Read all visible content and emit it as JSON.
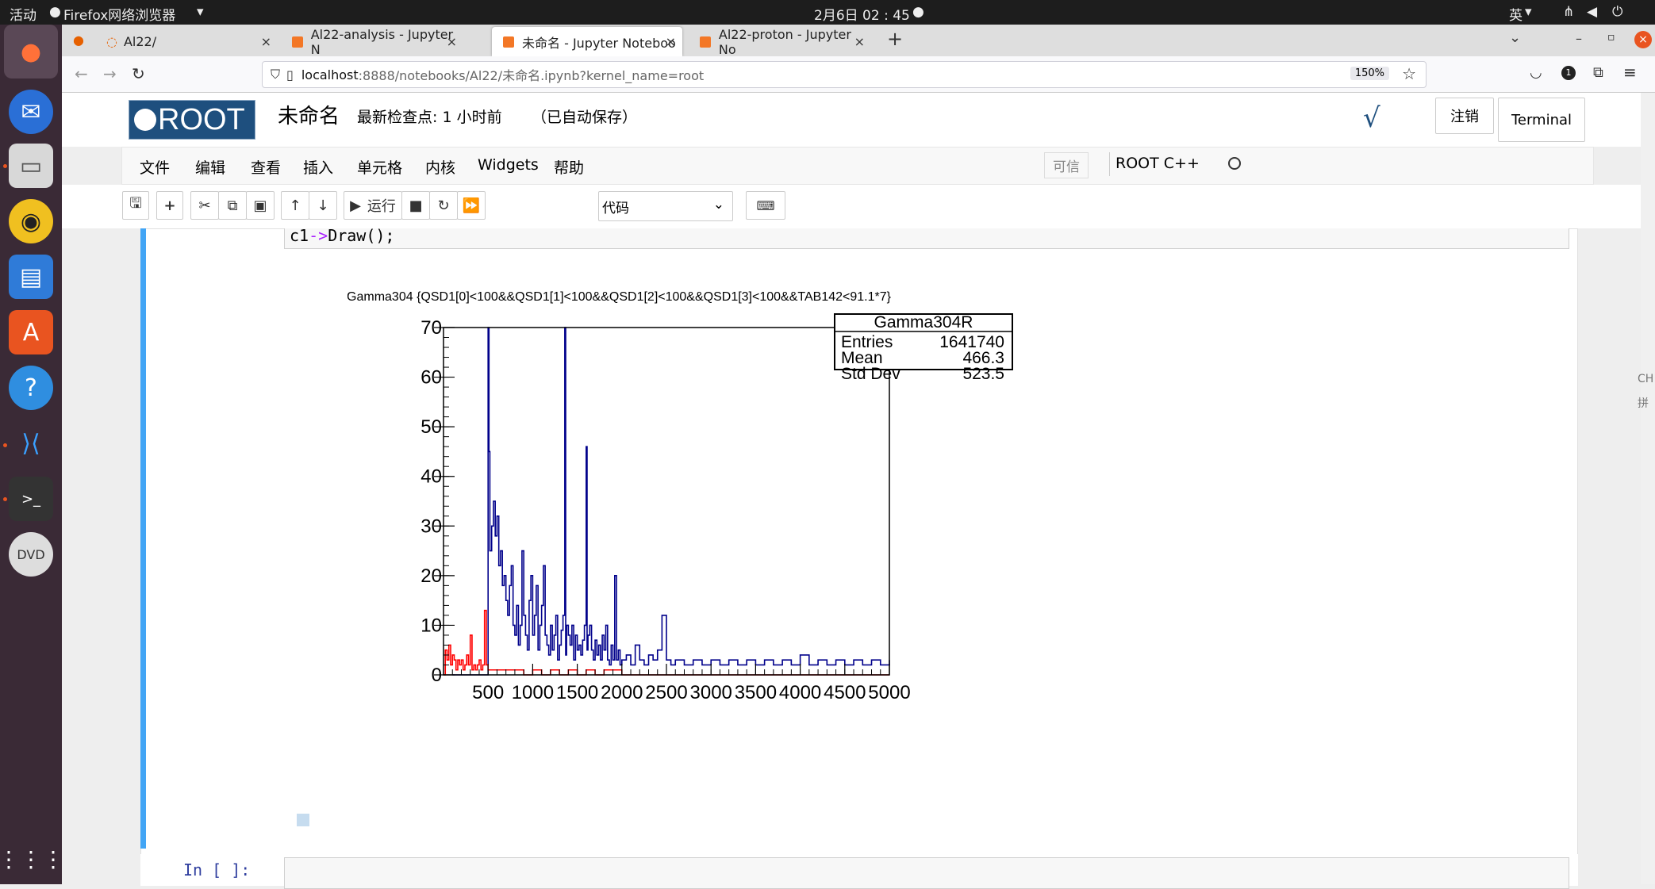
{
  "system": {
    "activities": "活动",
    "app_name": "Firefox网络浏览器",
    "clock": "2月6日  02 : 45",
    "input_method": "英"
  },
  "browser": {
    "tabs": [
      {
        "label": "Al22/"
      },
      {
        "label": "Al22-analysis - Jupyter N"
      },
      {
        "label": "未命名 - Jupyter Noteboo"
      },
      {
        "label": "Al22-proton - Jupyter No"
      }
    ],
    "new_tab": "+",
    "url_host": "localhost",
    "url_rest": ":8888/notebooks/Al22/未命名.ipynb?kernel_name=root",
    "zoom": "150%"
  },
  "notebook": {
    "logo": "ROOT",
    "title": "未命名",
    "checkpoint": "最新检查点: 1 小时前",
    "autosave": "（已自动保存）",
    "logout": "注销",
    "terminal": "Terminal",
    "menu": [
      "文件",
      "编辑",
      "查看",
      "插入",
      "单元格",
      "内核",
      "Widgets",
      "帮助"
    ],
    "trusted": "可信",
    "kernel": "ROOT C++",
    "run_label": "运行",
    "cell_type": "代码",
    "code_fragment_a": "c1",
    "code_fragment_b": "->",
    "code_fragment_c": "Draw();",
    "next_prompt": "In [ ]:"
  },
  "ime_panel": [
    "CH",
    "拼"
  ],
  "chart_data": {
    "type": "histogram",
    "title": "Gamma304 {QSD1[0]<100&&QSD1[1]<100&&QSD1[2]<100&&QSD1[3]<100&&TAB142<91.1*7}",
    "xlim": [
      0,
      5000
    ],
    "ylim": [
      0,
      70
    ],
    "x_ticks": [
      500,
      1000,
      1500,
      2000,
      2500,
      3000,
      3500,
      4000,
      4500,
      5000
    ],
    "y_ticks": [
      0,
      10,
      20,
      30,
      40,
      50,
      60,
      70
    ],
    "stats_box": {
      "name": "Gamma304R",
      "rows": [
        {
          "label": "Entries",
          "value": "1641740"
        },
        {
          "label": "Mean",
          "value": "466.3"
        },
        {
          "label": "Std Dev",
          "value": "523.5"
        }
      ]
    },
    "series": [
      {
        "color": "#00008b",
        "points": [
          [
            100,
            0
          ],
          [
            300,
            0
          ],
          [
            420,
            0
          ],
          [
            500,
            70
          ],
          [
            510,
            45
          ],
          [
            520,
            25
          ],
          [
            540,
            30
          ],
          [
            560,
            35
          ],
          [
            580,
            28
          ],
          [
            600,
            32
          ],
          [
            620,
            22
          ],
          [
            640,
            25
          ],
          [
            660,
            18
          ],
          [
            680,
            20
          ],
          [
            700,
            15
          ],
          [
            720,
            12
          ],
          [
            740,
            18
          ],
          [
            760,
            22
          ],
          [
            780,
            10
          ],
          [
            800,
            8
          ],
          [
            820,
            14
          ],
          [
            840,
            6
          ],
          [
            860,
            10
          ],
          [
            880,
            25
          ],
          [
            900,
            12
          ],
          [
            920,
            8
          ],
          [
            940,
            5
          ],
          [
            960,
            15
          ],
          [
            980,
            20
          ],
          [
            1000,
            8
          ],
          [
            1020,
            12
          ],
          [
            1040,
            18
          ],
          [
            1060,
            5
          ],
          [
            1080,
            10
          ],
          [
            1100,
            14
          ],
          [
            1120,
            22
          ],
          [
            1140,
            8
          ],
          [
            1160,
            6
          ],
          [
            1180,
            4
          ],
          [
            1200,
            10
          ],
          [
            1220,
            5
          ],
          [
            1240,
            8
          ],
          [
            1260,
            12
          ],
          [
            1280,
            3
          ],
          [
            1300,
            6
          ],
          [
            1320,
            9
          ],
          [
            1340,
            12
          ],
          [
            1360,
            70
          ],
          [
            1370,
            4
          ],
          [
            1380,
            10
          ],
          [
            1400,
            8
          ],
          [
            1420,
            6
          ],
          [
            1440,
            10
          ],
          [
            1460,
            3
          ],
          [
            1480,
            8
          ],
          [
            1500,
            5
          ],
          [
            1520,
            6
          ],
          [
            1540,
            4
          ],
          [
            1560,
            7
          ],
          [
            1580,
            10
          ],
          [
            1600,
            46
          ],
          [
            1610,
            5
          ],
          [
            1620,
            8
          ],
          [
            1640,
            10
          ],
          [
            1660,
            5
          ],
          [
            1680,
            3
          ],
          [
            1700,
            7
          ],
          [
            1720,
            4
          ],
          [
            1740,
            6
          ],
          [
            1760,
            3
          ],
          [
            1780,
            8
          ],
          [
            1800,
            5
          ],
          [
            1820,
            10
          ],
          [
            1840,
            3
          ],
          [
            1860,
            2
          ],
          [
            1880,
            6
          ],
          [
            1900,
            3
          ],
          [
            1920,
            20
          ],
          [
            1940,
            3
          ],
          [
            1960,
            5
          ],
          [
            1980,
            2
          ],
          [
            2000,
            3
          ],
          [
            2050,
            4
          ],
          [
            2100,
            2
          ],
          [
            2150,
            6
          ],
          [
            2200,
            3
          ],
          [
            2250,
            2
          ],
          [
            2300,
            4
          ],
          [
            2350,
            3
          ],
          [
            2400,
            5
          ],
          [
            2450,
            12
          ],
          [
            2500,
            3
          ],
          [
            2550,
            2
          ],
          [
            2600,
            3
          ],
          [
            2700,
            2
          ],
          [
            2800,
            3
          ],
          [
            2900,
            2
          ],
          [
            3000,
            3
          ],
          [
            3100,
            2
          ],
          [
            3200,
            3
          ],
          [
            3300,
            2
          ],
          [
            3400,
            3
          ],
          [
            3500,
            2
          ],
          [
            3600,
            3
          ],
          [
            3700,
            2
          ],
          [
            3800,
            3
          ],
          [
            3900,
            2
          ],
          [
            4000,
            4
          ],
          [
            4100,
            2
          ],
          [
            4200,
            3
          ],
          [
            4300,
            2
          ],
          [
            4400,
            3
          ],
          [
            4500,
            2
          ],
          [
            4600,
            3
          ],
          [
            4700,
            2
          ],
          [
            4800,
            3
          ],
          [
            4900,
            2
          ],
          [
            5000,
            3
          ]
        ]
      },
      {
        "color": "#ff0000",
        "points": [
          [
            0,
            0
          ],
          [
            20,
            5
          ],
          [
            40,
            3
          ],
          [
            60,
            6
          ],
          [
            80,
            2
          ],
          [
            100,
            4
          ],
          [
            120,
            3
          ],
          [
            140,
            1
          ],
          [
            160,
            3
          ],
          [
            180,
            2
          ],
          [
            200,
            3
          ],
          [
            220,
            1
          ],
          [
            240,
            2
          ],
          [
            260,
            4
          ],
          [
            280,
            2
          ],
          [
            300,
            8
          ],
          [
            320,
            1
          ],
          [
            340,
            2
          ],
          [
            360,
            1
          ],
          [
            380,
            2
          ],
          [
            400,
            3
          ],
          [
            420,
            1
          ],
          [
            440,
            2
          ],
          [
            460,
            13
          ],
          [
            480,
            2
          ],
          [
            500,
            1
          ],
          [
            600,
            1
          ],
          [
            700,
            1
          ],
          [
            800,
            1
          ],
          [
            900,
            0
          ],
          [
            1000,
            1
          ],
          [
            1100,
            0
          ],
          [
            1200,
            1
          ],
          [
            1300,
            0
          ],
          [
            1400,
            1
          ],
          [
            1500,
            0
          ],
          [
            1600,
            1
          ],
          [
            1700,
            0
          ],
          [
            1800,
            1
          ],
          [
            2000,
            0
          ],
          [
            5000,
            0
          ]
        ]
      }
    ]
  }
}
